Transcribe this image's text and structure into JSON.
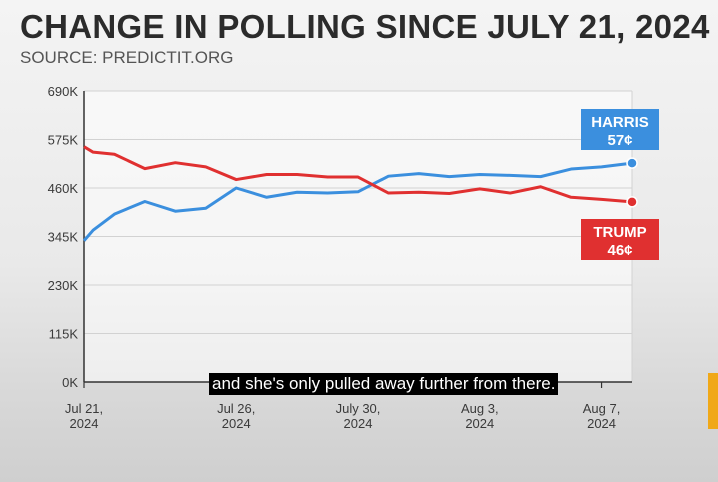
{
  "header": {
    "title": "CHANGE IN POLLING SINCE JULY 21, 2024",
    "source": "SOURCE: PREDICTIT.ORG"
  },
  "caption": "and she's only pulled away further from there.",
  "chart_data": {
    "type": "line",
    "title": "CHANGE IN POLLING SINCE JULY 21, 2024",
    "subtitle": "SOURCE: PREDICTIT.ORG",
    "xlabel": "",
    "ylabel": "",
    "ylim": [
      0,
      690000
    ],
    "xlim": [
      0,
      18
    ],
    "y_ticks": [
      0,
      115000,
      230000,
      345000,
      460000,
      575000,
      690000
    ],
    "y_tick_labels": [
      "0K",
      "115K",
      "230K",
      "345K",
      "460K",
      "575K",
      "690K"
    ],
    "x_ticks": [
      0,
      5,
      9,
      13,
      17
    ],
    "x_tick_labels": [
      [
        "Jul 21,",
        "2024"
      ],
      [
        "Jul 26,",
        "2024"
      ],
      [
        "July 30,",
        "2024"
      ],
      [
        "Aug 3,",
        "2024"
      ],
      [
        "Aug 7,",
        "2024"
      ]
    ],
    "grid": true,
    "x": [
      0,
      0.3,
      1,
      2,
      3,
      4,
      5,
      6,
      7,
      8,
      9,
      10,
      11,
      12,
      13,
      14,
      15,
      16,
      17,
      18
    ],
    "series": [
      {
        "name": "HARRIS",
        "label": "HARRIS",
        "value_label": "57¢",
        "color": "#3b8fde",
        "values": [
          335000,
          360000,
          398000,
          428000,
          405000,
          412000,
          460000,
          438000,
          450000,
          448000,
          451000,
          488000,
          494000,
          487000,
          492000,
          490000,
          487000,
          505000,
          510000,
          519000
        ]
      },
      {
        "name": "TRUMP",
        "label": "TRUMP",
        "value_label": "46¢",
        "color": "#e03030",
        "values": [
          558000,
          545000,
          540000,
          506000,
          520000,
          510000,
          480000,
          492000,
          492000,
          486000,
          486000,
          448000,
          450000,
          447000,
          458000,
          448000,
          463000,
          438000,
          433000,
          427000
        ]
      }
    ]
  }
}
